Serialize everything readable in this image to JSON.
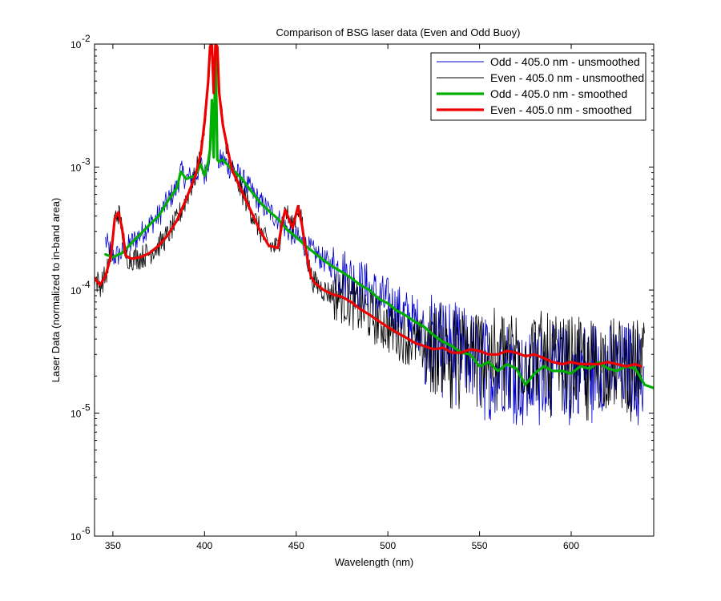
{
  "chart_data": {
    "type": "line",
    "title": "Comparison of BSG laser data (Even and Odd Buoy)",
    "xlabel": "Wavelength (nm)",
    "ylabel": "Laser Data (normalized to in-band area)",
    "xlim": [
      340,
      645
    ],
    "ylim": [
      1e-06,
      0.01
    ],
    "yscale": "log",
    "grid": false,
    "legend_position": "top-right",
    "xticks": [
      350,
      400,
      450,
      500,
      550,
      600
    ],
    "xtick_labels": [
      "350",
      "400",
      "450",
      "500",
      "550",
      "600"
    ],
    "yticks": [
      1e-06,
      1e-05,
      0.0001,
      0.001,
      0.01
    ],
    "ytick_labels": [
      {
        "base": "10",
        "exp": "-6"
      },
      {
        "base": "10",
        "exp": "-5"
      },
      {
        "base": "10",
        "exp": "-4"
      },
      {
        "base": "10",
        "exp": "-3"
      },
      {
        "base": "10",
        "exp": "-2"
      }
    ],
    "series": [
      {
        "name": "Odd - 405.0 nm - unsmoothed",
        "color": "#0000cc",
        "noisy": true,
        "x": [
          346,
          350,
          355,
          360,
          365,
          370,
          375,
          380,
          385,
          387,
          390,
          395,
          398,
          400,
          402,
          403,
          404,
          405,
          406,
          407,
          408,
          410,
          415,
          420,
          425,
          430,
          435,
          440,
          445,
          450,
          455,
          460,
          465,
          470,
          475,
          480,
          485,
          490,
          495,
          500,
          505,
          510,
          515,
          520,
          525,
          530,
          535,
          540,
          545,
          550,
          555,
          560,
          565,
          570,
          575,
          580,
          585,
          590,
          595,
          600,
          605,
          610,
          615,
          620,
          625,
          630,
          635,
          640
        ],
        "y": [
          0.00025,
          0.000185,
          0.0002,
          0.00024,
          0.000285,
          0.00034,
          0.0004,
          0.00053,
          0.00068,
          0.00092,
          0.0008,
          0.00085,
          0.00105,
          0.00085,
          0.0011,
          0.0014,
          0.0035,
          0.0012,
          0.0095,
          0.00115,
          0.0011,
          0.00115,
          0.00095,
          0.00082,
          0.00065,
          0.00052,
          0.00044,
          0.00038,
          0.00031,
          0.00027,
          0.00023,
          0.0002,
          0.000175,
          0.000155,
          0.00014,
          0.000125,
          0.00011,
          0.0001,
          8.5e-05,
          7.8e-05,
          6.8e-05,
          6.2e-05,
          5.5e-05,
          5e-05,
          4.3e-05,
          3.8e-05,
          3.5e-05,
          3.1e-05,
          3e-05,
          2.4e-05,
          2.6e-05,
          2.2e-05,
          2.5e-05,
          2.3e-05,
          1.7e-05,
          2.1e-05,
          2.4e-05,
          2.2e-05,
          2.2e-05,
          2.1e-05,
          2.4e-05,
          2.3e-05,
          2.6e-05,
          2.3e-05,
          2.2e-05,
          2.4e-05,
          2.3e-05,
          1.7e-05
        ]
      },
      {
        "name": "Even - 405.0 nm - unsmoothed",
        "color": "#000000",
        "noisy": true,
        "x": [
          340,
          343,
          346,
          349,
          351,
          353,
          355,
          357,
          360,
          365,
          370,
          375,
          380,
          385,
          390,
          395,
          398,
          400,
          402,
          403,
          404,
          405,
          406,
          407,
          408,
          410,
          413,
          415,
          420,
          425,
          430,
          435,
          440,
          442,
          444,
          448,
          451,
          453,
          455,
          458,
          460,
          465,
          470,
          475,
          480,
          485,
          490,
          495,
          500,
          505,
          510,
          515,
          520,
          525,
          530,
          535,
          540,
          545,
          550,
          555,
          560,
          565,
          570,
          575,
          580,
          585,
          590,
          595,
          600,
          605,
          610,
          615,
          620,
          625,
          630,
          635,
          640
        ],
        "y": [
          0.000125,
          0.00011,
          0.00013,
          0.00019,
          0.00038,
          0.00043,
          0.00032,
          0.00019,
          0.00018,
          0.000185,
          0.0002,
          0.00023,
          0.00028,
          0.00037,
          0.00055,
          0.00085,
          0.0013,
          0.0023,
          0.005,
          0.0095,
          0.01,
          0.004,
          0.01,
          0.0095,
          0.004,
          0.0022,
          0.0013,
          0.00095,
          0.00065,
          0.00045,
          0.00031,
          0.00023,
          0.00022,
          0.00033,
          0.00045,
          0.00032,
          0.00048,
          0.00035,
          0.00022,
          0.00013,
          0.000115,
          0.0001,
          9.2e-05,
          8.8e-05,
          8e-05,
          7e-05,
          6.3e-05,
          5.6e-05,
          5e-05,
          4.5e-05,
          4.1e-05,
          3.7e-05,
          3.5e-05,
          3.3e-05,
          3.4e-05,
          3.1e-05,
          3.1e-05,
          3.3e-05,
          3.2e-05,
          3e-05,
          3e-05,
          3.2e-05,
          3.1e-05,
          2.9e-05,
          3e-05,
          2.8e-05,
          2.6e-05,
          2.5e-05,
          2.6e-05,
          2.5e-05,
          2.5e-05,
          2.5e-05,
          2.6e-05,
          2.5e-05,
          2.4e-05,
          2.5e-05,
          2.4e-05
        ]
      },
      {
        "name": "Odd - 405.0 nm - smoothed",
        "color": "#00b000",
        "x": [
          346,
          350,
          355,
          360,
          365,
          370,
          375,
          380,
          385,
          387,
          390,
          395,
          398,
          400,
          402,
          403,
          404,
          405,
          406,
          407,
          408,
          410,
          415,
          420,
          425,
          430,
          435,
          440,
          445,
          450,
          455,
          460,
          465,
          470,
          475,
          480,
          485,
          490,
          495,
          500,
          505,
          510,
          515,
          520,
          525,
          530,
          535,
          540,
          545,
          550,
          555,
          560,
          565,
          570,
          575,
          580,
          585,
          590,
          595,
          600,
          605,
          610,
          615,
          620,
          625,
          630,
          635,
          640,
          645
        ],
        "y": [
          0.000195,
          0.000185,
          0.0002,
          0.00024,
          0.000285,
          0.00034,
          0.0004,
          0.00053,
          0.00068,
          0.00092,
          0.0008,
          0.00085,
          0.00105,
          0.00085,
          0.0011,
          0.0014,
          0.0035,
          0.0012,
          0.0095,
          0.00115,
          0.0011,
          0.00115,
          0.00095,
          0.00082,
          0.00065,
          0.00052,
          0.00044,
          0.00038,
          0.00031,
          0.00027,
          0.00023,
          0.0002,
          0.000175,
          0.000155,
          0.00014,
          0.000125,
          0.00011,
          0.0001,
          8.5e-05,
          7.8e-05,
          6.8e-05,
          6.2e-05,
          5.5e-05,
          5e-05,
          4.3e-05,
          3.8e-05,
          3.5e-05,
          3.1e-05,
          3e-05,
          2.4e-05,
          2.6e-05,
          2.2e-05,
          2.5e-05,
          2.3e-05,
          1.7e-05,
          2.1e-05,
          2.4e-05,
          2.2e-05,
          2.2e-05,
          2.1e-05,
          2.4e-05,
          2.3e-05,
          2.6e-05,
          2.3e-05,
          2.2e-05,
          2.4e-05,
          2.3e-05,
          1.7e-05,
          1.6e-05
        ]
      },
      {
        "name": "Even - 405.0 nm - smoothed",
        "color": "#ee0000",
        "x": [
          340,
          343,
          346,
          349,
          351,
          353,
          355,
          357,
          360,
          365,
          370,
          375,
          380,
          385,
          390,
          395,
          398,
          400,
          402,
          403,
          404,
          405,
          406,
          407,
          408,
          410,
          413,
          415,
          420,
          425,
          430,
          435,
          440,
          442,
          444,
          448,
          451,
          453,
          455,
          458,
          460,
          465,
          470,
          475,
          480,
          485,
          490,
          495,
          500,
          505,
          510,
          515,
          520,
          525,
          530,
          535,
          540,
          545,
          550,
          555,
          560,
          565,
          570,
          575,
          580,
          585,
          590,
          595,
          600,
          605,
          610,
          615,
          620,
          625,
          630,
          635,
          638
        ],
        "y": [
          0.000125,
          0.00011,
          0.00013,
          0.00019,
          0.00038,
          0.00043,
          0.00032,
          0.00019,
          0.00018,
          0.000185,
          0.0002,
          0.00023,
          0.00028,
          0.00037,
          0.00055,
          0.00085,
          0.0013,
          0.0023,
          0.005,
          0.0095,
          0.01,
          0.004,
          0.01,
          0.0095,
          0.004,
          0.0022,
          0.0013,
          0.00095,
          0.00065,
          0.00045,
          0.00031,
          0.00023,
          0.00022,
          0.00033,
          0.00045,
          0.00032,
          0.00048,
          0.00035,
          0.00022,
          0.00013,
          0.000115,
          0.0001,
          9.2e-05,
          8.8e-05,
          8e-05,
          7e-05,
          6.3e-05,
          5.6e-05,
          5e-05,
          4.5e-05,
          4.1e-05,
          3.7e-05,
          3.5e-05,
          3.3e-05,
          3.4e-05,
          3.1e-05,
          3.1e-05,
          3.3e-05,
          3.2e-05,
          3e-05,
          3e-05,
          3.2e-05,
          3.1e-05,
          2.9e-05,
          3e-05,
          2.8e-05,
          2.6e-05,
          2.5e-05,
          2.6e-05,
          2.5e-05,
          2.5e-05,
          2.5e-05,
          2.6e-05,
          2.5e-05,
          2.4e-05,
          2.5e-05,
          2.4e-05
        ]
      }
    ]
  }
}
